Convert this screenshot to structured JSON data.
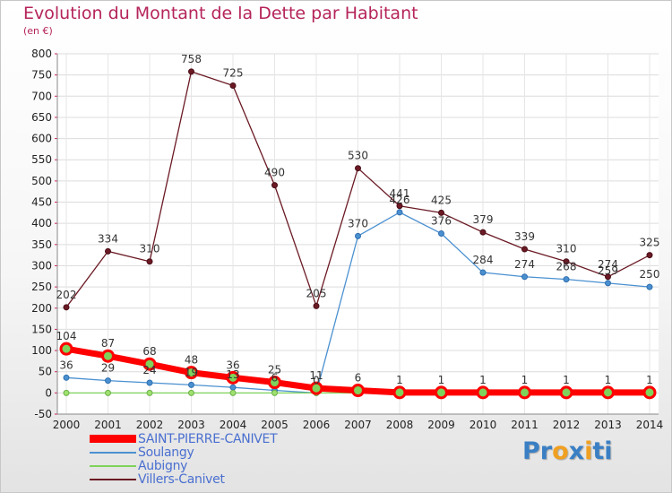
{
  "chart_data": {
    "type": "line",
    "title": "Evolution du Montant de la Dette par Habitant",
    "subtitle": "(en €)",
    "x": [
      "2000",
      "2001",
      "2002",
      "2003",
      "2004",
      "2005",
      "2006",
      "2007",
      "2008",
      "2009",
      "2010",
      "2011",
      "2012",
      "2013",
      "2014"
    ],
    "ylim": [
      -50,
      800
    ],
    "yticks": [
      -50,
      0,
      50,
      100,
      150,
      200,
      250,
      300,
      350,
      400,
      450,
      500,
      550,
      600,
      650,
      700,
      750,
      800
    ],
    "grid": true,
    "legend_position": "bottom-left",
    "series": [
      {
        "name": "SAINT-PIERRE-CANIVET",
        "color": "#ff0000",
        "values": [
          104,
          87,
          68,
          48,
          36,
          25,
          11,
          6,
          1,
          1,
          1,
          1,
          1,
          1,
          1
        ]
      },
      {
        "name": "Soulangy",
        "color": "#4a90d0",
        "values": [
          36,
          29,
          24,
          19,
          13,
          6,
          0,
          370,
          426,
          376,
          284,
          274,
          268,
          259,
          250
        ]
      },
      {
        "name": "Aubigny",
        "color": "#7fd35a",
        "values": [
          0,
          0,
          0,
          0,
          0,
          0,
          0,
          0,
          0,
          0,
          0,
          0,
          0,
          0,
          0
        ]
      },
      {
        "name": "Villers-Canivet",
        "color": "#6b1a24",
        "values": [
          202,
          334,
          310,
          758,
          725,
          490,
          205,
          530,
          441,
          425,
          379,
          339,
          310,
          274,
          325
        ]
      }
    ],
    "data_labels": {
      "SAINT-PIERRE-CANIVET": [
        "104",
        "87",
        "68",
        "48",
        "36",
        "25",
        "11",
        "6",
        "1",
        "1",
        "1",
        "1",
        "1",
        "1",
        "1"
      ],
      "Soulangy": [
        "36",
        "29",
        "24",
        "19",
        "13",
        "6",
        "0",
        "370",
        "426",
        "376",
        "284",
        "274",
        "268",
        "259",
        "250"
      ],
      "Villers-Canivet": [
        "202",
        "334",
        "310",
        "758",
        "725",
        "490",
        "205",
        "530",
        "441",
        "425",
        "379",
        "339",
        "310",
        "274",
        "325"
      ]
    }
  },
  "logo": {
    "letters": [
      "P",
      "r",
      "o",
      "x",
      "i",
      "t",
      "i"
    ],
    "colors": [
      "#3a7fc4",
      "#3a7fc4",
      "#f0a020",
      "#3a7fc4",
      "#f0a020",
      "#3a7fc4",
      "#3a7fc4"
    ]
  }
}
